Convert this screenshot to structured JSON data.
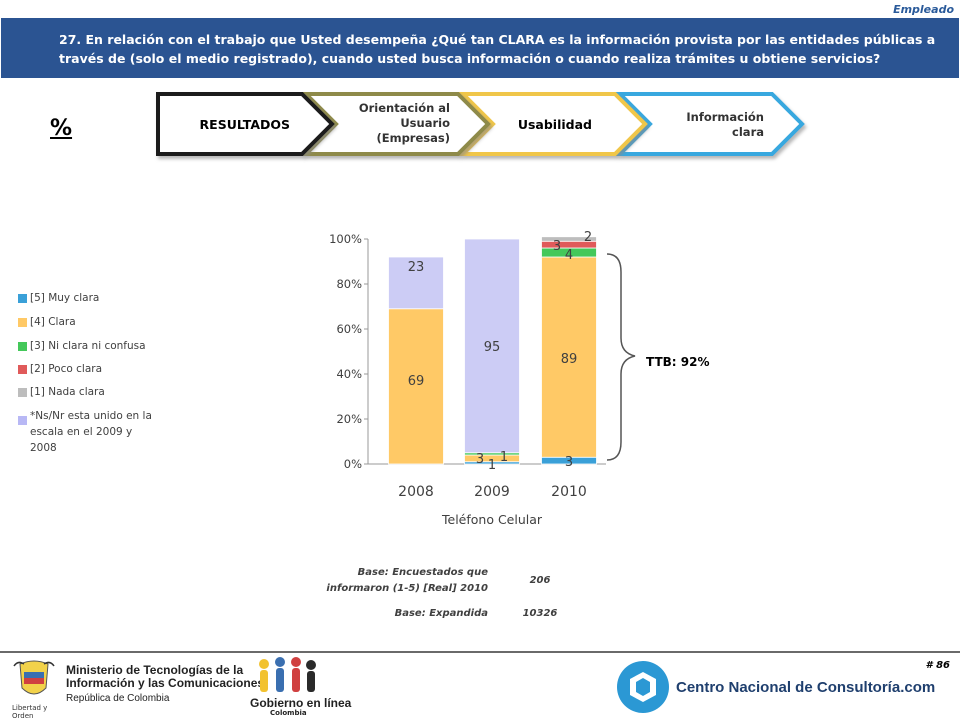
{
  "header": {
    "tag": "Empleado",
    "question": "27. En relación con el trabajo que Usted desempeña ¿Qué tan CLARA es la información provista por las entidades públicas a través de (solo el medio registrado), cuando usted busca información o cuando realiza trámites u obtiene servicios?"
  },
  "percent_symbol": "%",
  "breadcrumb": {
    "steps": [
      {
        "label": "RESULTADOS",
        "border": "#1a1a1a"
      },
      {
        "label": "Orientación al Usuario (Empresas)",
        "border": "#8e8a4a"
      },
      {
        "label": "Usabilidad",
        "border": "#f0c64a"
      },
      {
        "label": "Información clara",
        "border": "#38a8df"
      }
    ]
  },
  "legend": [
    {
      "label": "[5] Muy clara",
      "color": "#3aa0d8"
    },
    {
      "label": "[4] Clara",
      "color": "#ffc966"
    },
    {
      "label": "[3] Ni clara ni confusa",
      "color": "#44c85a"
    },
    {
      "label": "[2] Poco clara",
      "color": "#e05a5a"
    },
    {
      "label": "[1] Nada clara",
      "color": "#bdbdbd"
    },
    {
      "label": "*Ns/Nr esta unido en la escala en el 2009 y 2008",
      "color": "#b8b8f5"
    }
  ],
  "chart_data": {
    "type": "bar",
    "stacked": true,
    "categories": [
      "2008",
      "2009",
      "2010"
    ],
    "xlabel": "Teléfono Celular",
    "ylim": [
      0,
      100
    ],
    "y_ticks": [
      "0%",
      "20%",
      "40%",
      "60%",
      "80%",
      "100%"
    ],
    "grid": false,
    "series": [
      {
        "name": "[5] Muy clara",
        "color": "#3aa0d8",
        "values": [
          0,
          1,
          3
        ],
        "labels": [
          "",
          "1",
          "3"
        ]
      },
      {
        "name": "[4] Clara",
        "color": "#ffc966",
        "values": [
          69,
          3,
          89
        ],
        "labels": [
          "69",
          "3",
          "89"
        ]
      },
      {
        "name": "[3] Ni clara ni confusa",
        "color": "#44c85a",
        "values": [
          0,
          1,
          4
        ],
        "labels": [
          "",
          "1",
          "4"
        ]
      },
      {
        "name": "[2] Poco clara",
        "color": "#e05a5a",
        "values": [
          0,
          0,
          3
        ],
        "labels": [
          "",
          "",
          "3"
        ]
      },
      {
        "name": "[1] Nada clara",
        "color": "#bdbdbd",
        "values": [
          0,
          0,
          2
        ],
        "labels": [
          "",
          "",
          "2"
        ]
      },
      {
        "name": "*Ns/Nr esta unido en la escala en el 2009 y 2008",
        "color": "#ccccf5",
        "values": [
          23,
          95,
          0
        ],
        "labels": [
          "23",
          "95",
          ""
        ]
      }
    ],
    "annotation": "TTB: 92%"
  },
  "base": {
    "real_label": "Base: Encuestados que informaron (1-5) [Real] 2010",
    "real_value": "206",
    "expanded_label": "Base: Expandida",
    "expanded_value": "10326"
  },
  "footer": {
    "page_number": "# 86",
    "ministry_lines": [
      "Ministerio de Tecnologías de la",
      "Información y las Comunicaciones",
      "República de Colombia"
    ],
    "ministry_motto": "Libertad y Orden",
    "gobierno_text": "Gobierno en línea",
    "gobierno_sub": "Colombia",
    "cnc_text": "Centro Nacional de Consultoría.com"
  }
}
